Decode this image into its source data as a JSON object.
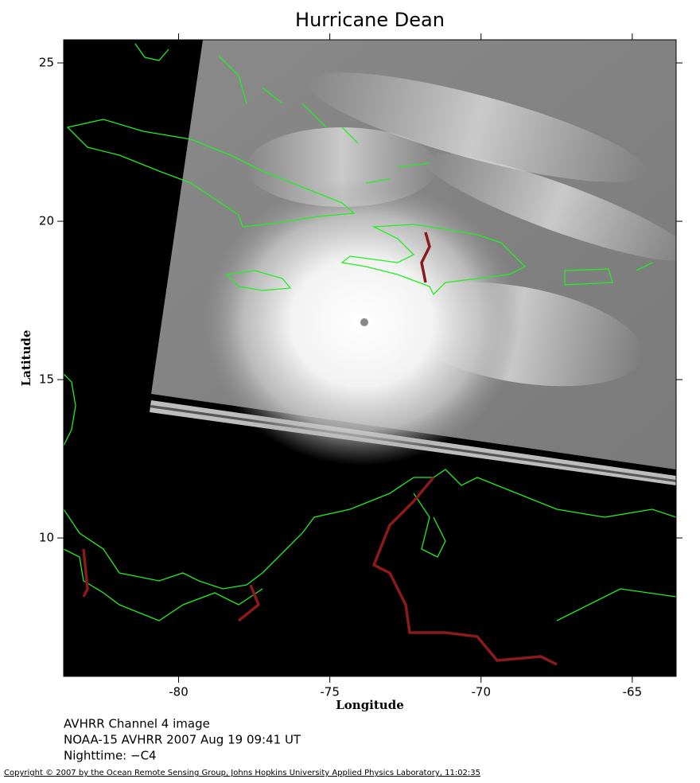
{
  "chart_data": {
    "type": "map",
    "title": "Hurricane Dean",
    "xlabel": "Longitude",
    "ylabel": "Latitude",
    "xlim": [
      -83.8,
      -63.55
    ],
    "ylim": [
      5.63,
      25.73
    ],
    "xticks": [
      -80,
      -75,
      -70,
      -65
    ],
    "yticks": [
      10,
      15,
      20,
      25
    ],
    "grid": false
  },
  "notes": [
    "AVHRR Channel 4 image",
    "NOAA-15 AVHRR 2007 Aug 19 09:41 UT",
    "Nighttime: −C4"
  ],
  "copyright": "Copyright © 2007 by the Ocean Remote Sensing Group, Johns Hopkins University Applied Physics Laboratory, 11:02:35"
}
